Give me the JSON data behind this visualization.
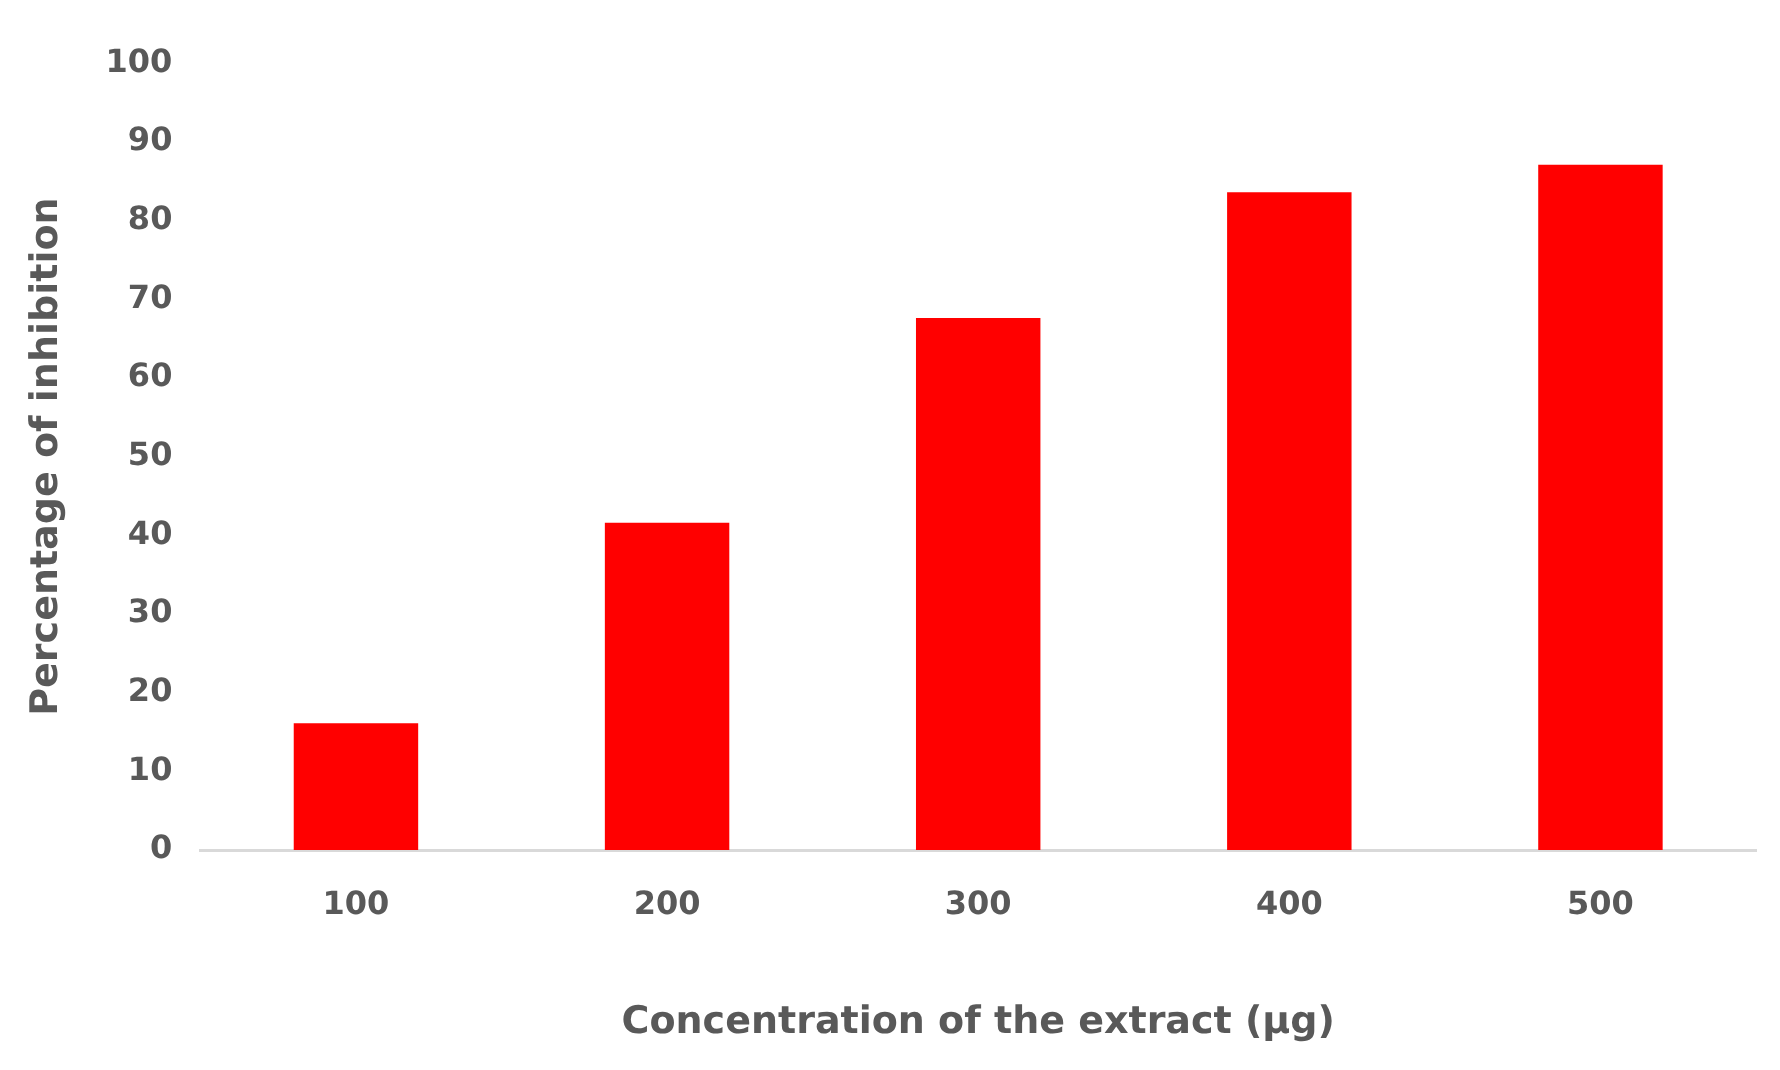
{
  "chart_data": {
    "type": "bar",
    "xlabel": "Concentration of the extract (µg)",
    "ylabel": "Percentage of inhibition",
    "categories": [
      "100",
      "200",
      "300",
      "400",
      "500"
    ],
    "values": [
      16.1,
      41.6,
      67.6,
      83.6,
      87.1
    ],
    "color": "#ff0000",
    "ylim": [
      0,
      100
    ],
    "yticks": [
      0,
      10,
      20,
      30,
      40,
      50,
      60,
      70,
      80,
      90,
      100
    ],
    "grid": false,
    "legend": false
  }
}
